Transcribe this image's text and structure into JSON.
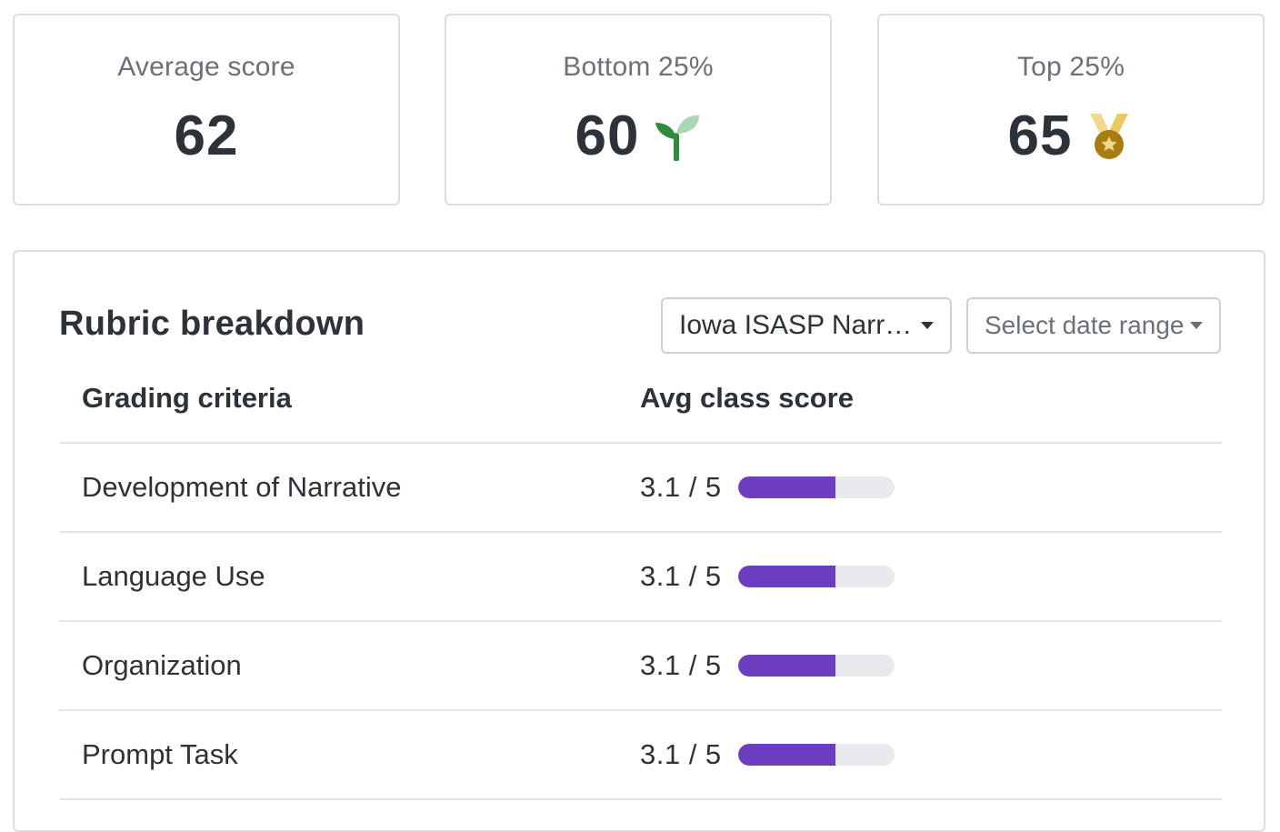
{
  "stats": [
    {
      "label": "Average score",
      "value": "62",
      "icon": null
    },
    {
      "label": "Bottom 25%",
      "value": "60",
      "icon": "sprout-icon"
    },
    {
      "label": "Top 25%",
      "value": "65",
      "icon": "medal-icon"
    }
  ],
  "rubric": {
    "title": "Rubric breakdown",
    "rubric_select": {
      "value": "Iowa ISASP Narr…"
    },
    "date_select": {
      "placeholder": "Select date range"
    },
    "columns": [
      "Grading criteria",
      "Avg class score"
    ],
    "rows": [
      {
        "criterion": "Development of Narrative",
        "score_text": "3.1 / 5",
        "score": 3.1,
        "max": 5
      },
      {
        "criterion": "Language Use",
        "score_text": "3.1 / 5",
        "score": 3.1,
        "max": 5
      },
      {
        "criterion": "Organization",
        "score_text": "3.1 / 5",
        "score": 3.1,
        "max": 5
      },
      {
        "criterion": "Prompt Task",
        "score_text": "3.1 / 5",
        "score": 3.1,
        "max": 5
      }
    ]
  },
  "colors": {
    "bar_fill": "#6d3fc0",
    "bar_track": "#e8e9ec",
    "sprout_dark": "#2e8b3e",
    "sprout_light": "#a9d6b3",
    "medal_gold": "#a77d12",
    "medal_ribbon": "#f1d98a"
  }
}
